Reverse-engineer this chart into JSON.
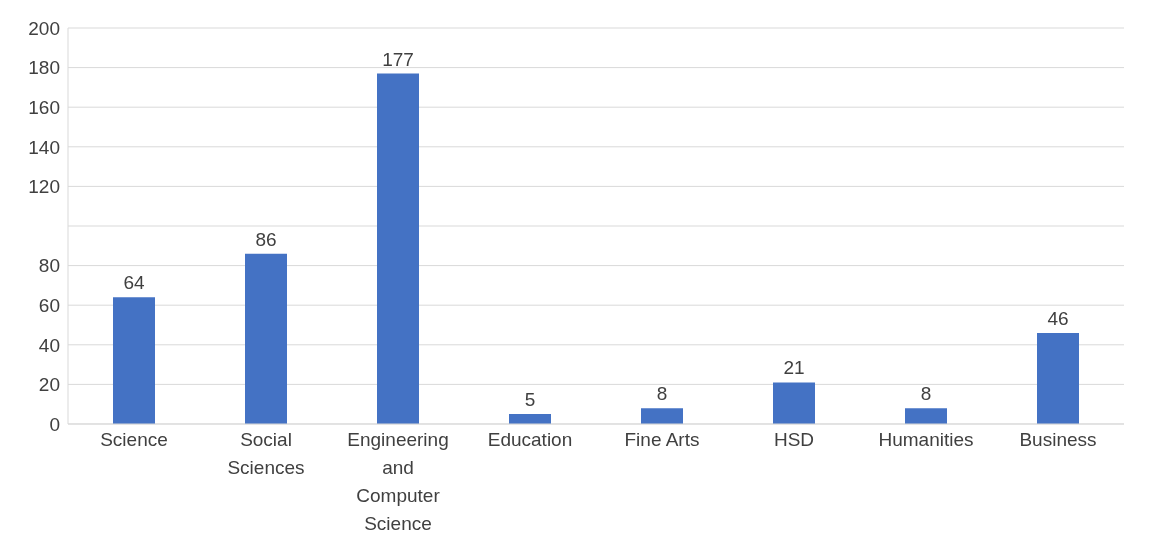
{
  "chart_data": {
    "type": "bar",
    "categories": [
      "Science",
      "Social Sciences",
      "Engineering and Computer Science",
      "Education",
      "Fine Arts",
      "HSD",
      "Humanities",
      "Business"
    ],
    "values": [
      64,
      86,
      177,
      5,
      8,
      21,
      8,
      46
    ],
    "color": "#4472c4",
    "ylim": [
      0,
      200
    ],
    "yticks": [
      0,
      20,
      40,
      60,
      80,
      {
        "value": 100,
        "label": null
      },
      120,
      140,
      160,
      180,
      200
    ],
    "grid": "y",
    "data_labels": true
  }
}
